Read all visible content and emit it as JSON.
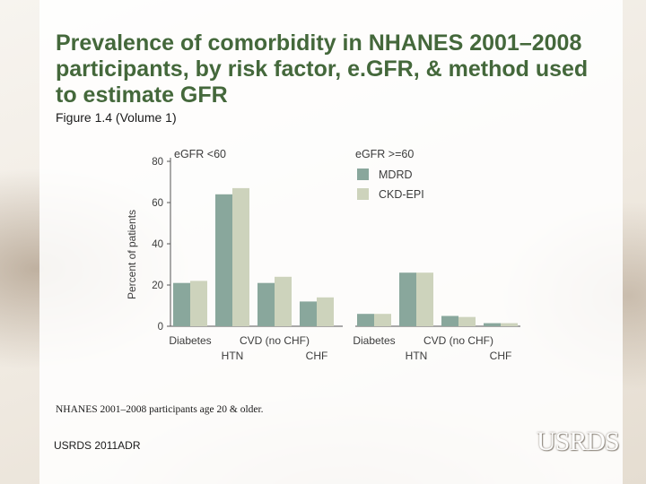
{
  "title": "Prevalence of comorbidity in NHANES 2001–2008 participants, by risk factor, e.GFR, & method used to estimate GFR",
  "subtitle": "Figure 1.4 (Volume 1)",
  "note": "NHANES 2001–2008 participants age 20 & older.",
  "source": "USRDS 2011ADR",
  "logo_text": "USRDS",
  "colors": {
    "MDRD": "#89a79c",
    "CKD-EPI": "#cdd3bc",
    "axis": "#555555"
  },
  "chart_data": [
    {
      "type": "bar",
      "panel_title": "eGFR <60",
      "categories": [
        "Diabetes",
        "HTN",
        "CVD (no CHF)",
        "CHF"
      ],
      "series": [
        {
          "name": "MDRD",
          "values": [
            21,
            64,
            21,
            12
          ]
        },
        {
          "name": "CKD-EPI",
          "values": [
            22,
            67,
            24,
            14
          ]
        }
      ],
      "ylabel": "Percent of patients",
      "yticks": [
        0,
        20,
        40,
        60,
        80
      ],
      "ylim": [
        0,
        80
      ],
      "grid": false,
      "legend": "none"
    },
    {
      "type": "bar",
      "panel_title": "eGFR >=60",
      "categories": [
        "Diabetes",
        "HTN",
        "CVD (no CHF)",
        "CHF"
      ],
      "series": [
        {
          "name": "MDRD",
          "values": [
            6,
            26,
            5,
            1.5
          ]
        },
        {
          "name": "CKD-EPI",
          "values": [
            6,
            26,
            4.5,
            1.5
          ]
        }
      ],
      "ylim": [
        0,
        80
      ],
      "grid": false,
      "legend": "top-left"
    }
  ]
}
